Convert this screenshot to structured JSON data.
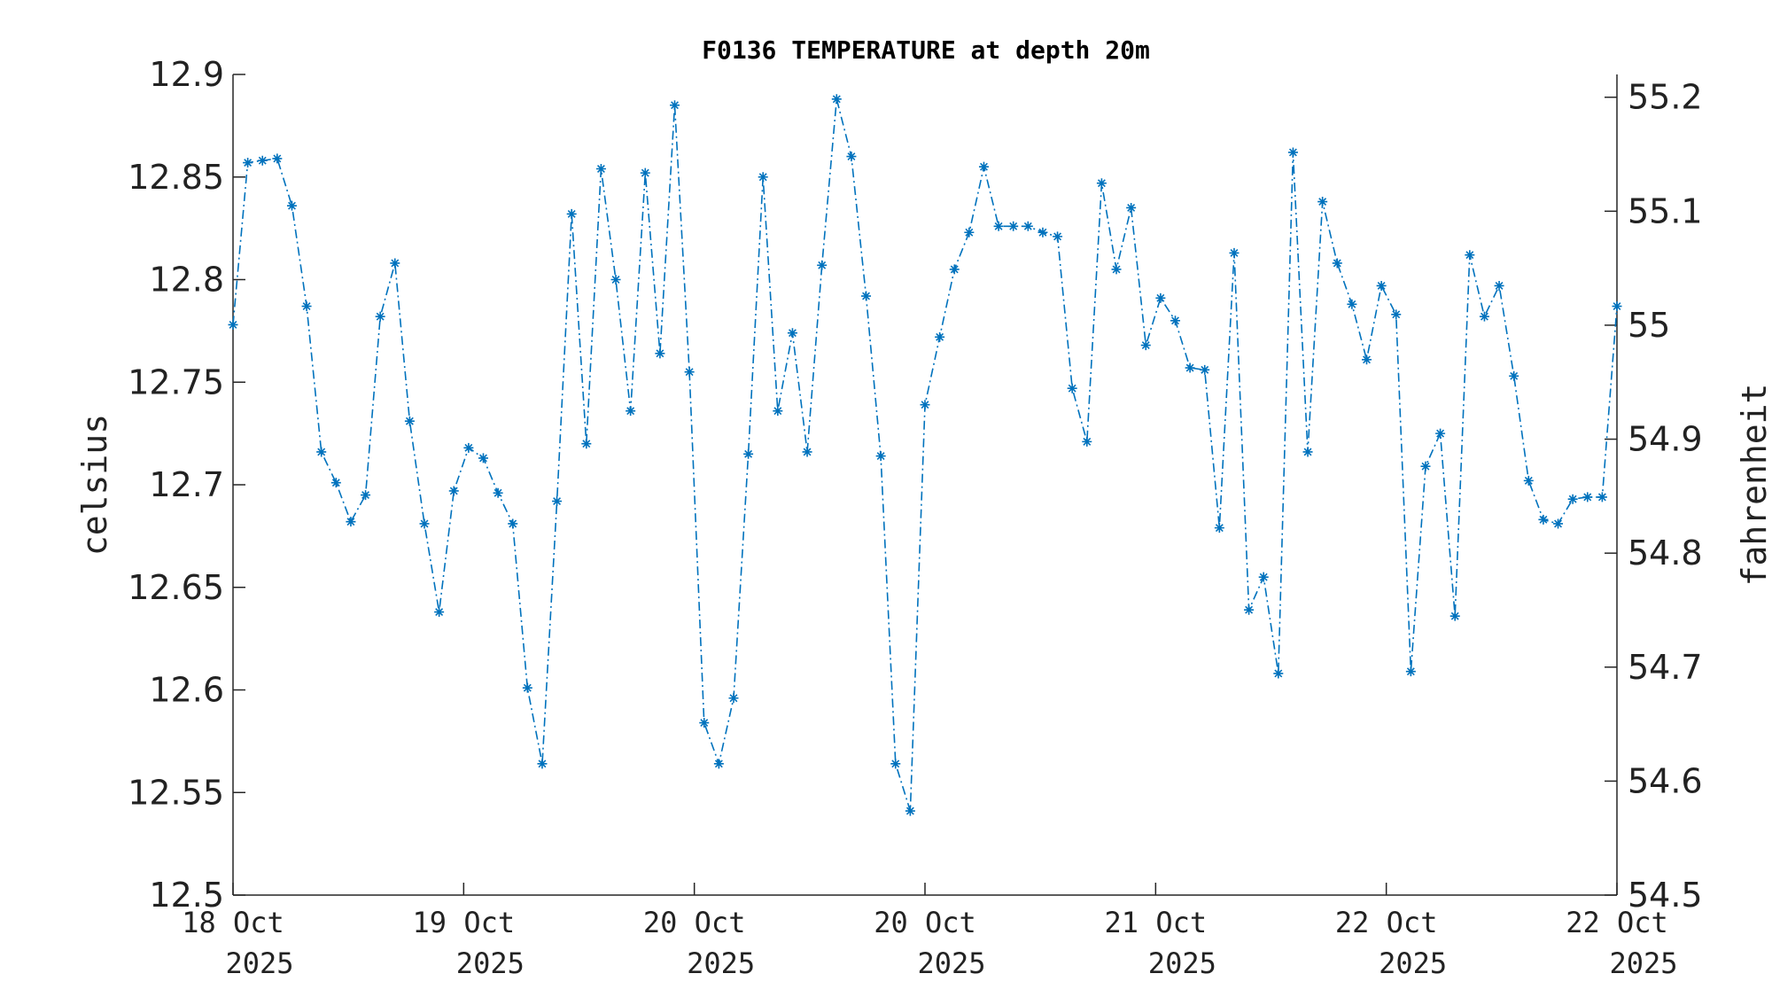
{
  "chart_data": {
    "type": "line",
    "title": "F0136 TEMPERATURE at depth 20m",
    "ylabel": "celsius",
    "ylabel_right": "fahrenheit",
    "xlabel": "",
    "ylim": [
      12.5,
      12.9
    ],
    "ylim_right": [
      54.5,
      55.22
    ],
    "yticks": [
      "12.5",
      "12.55",
      "12.6",
      "12.65",
      "12.7",
      "12.75",
      "12.8",
      "12.85",
      "12.9"
    ],
    "yticks_right": [
      "54.5",
      "54.6",
      "54.7",
      "54.8",
      "54.9",
      "55",
      "55.1",
      "55.2"
    ],
    "xticks": [
      {
        "line1": "18 Oct",
        "line2": "2025"
      },
      {
        "line1": "19 Oct",
        "line2": "2025"
      },
      {
        "line1": "20 Oct",
        "line2": "2025"
      },
      {
        "line1": "20 Oct",
        "line2": "2025"
      },
      {
        "line1": "21 Oct",
        "line2": "2025"
      },
      {
        "line1": "22 Oct",
        "line2": "2025"
      },
      {
        "line1": "22 Oct",
        "line2": "2025"
      }
    ],
    "grid": false,
    "marker": "asterisk",
    "line_style": "dash-dot",
    "series_color": "#0072BD",
    "series": [
      {
        "values": [
          12.778,
          12.857,
          12.858,
          12.859,
          12.836,
          12.787,
          12.716,
          12.701,
          12.682,
          12.695,
          12.782,
          12.808,
          12.731,
          12.681,
          12.638,
          12.697,
          12.718,
          12.713,
          12.696,
          12.681,
          12.601,
          12.564,
          12.692,
          12.832,
          12.72,
          12.854,
          12.8,
          12.736,
          12.852,
          12.764,
          12.885,
          12.755,
          12.584,
          12.564,
          12.596,
          12.715,
          12.85,
          12.736,
          12.774,
          12.716,
          12.807,
          12.888,
          12.86,
          12.792,
          12.714,
          12.564,
          12.541,
          12.739,
          12.772,
          12.805,
          12.823,
          12.855,
          12.826,
          12.826,
          12.826,
          12.823,
          12.821,
          12.747,
          12.721,
          12.847,
          12.805,
          12.835,
          12.768,
          12.791,
          12.78,
          12.757,
          12.756,
          12.679,
          12.813,
          12.639,
          12.655,
          12.608,
          12.862,
          12.716,
          12.838,
          12.808,
          12.788,
          12.761,
          12.797,
          12.783,
          12.609,
          12.709,
          12.725,
          12.636,
          12.812,
          12.782,
          12.797,
          12.753,
          12.702,
          12.683,
          12.681,
          12.693,
          12.694,
          12.694,
          12.787
        ]
      }
    ]
  }
}
